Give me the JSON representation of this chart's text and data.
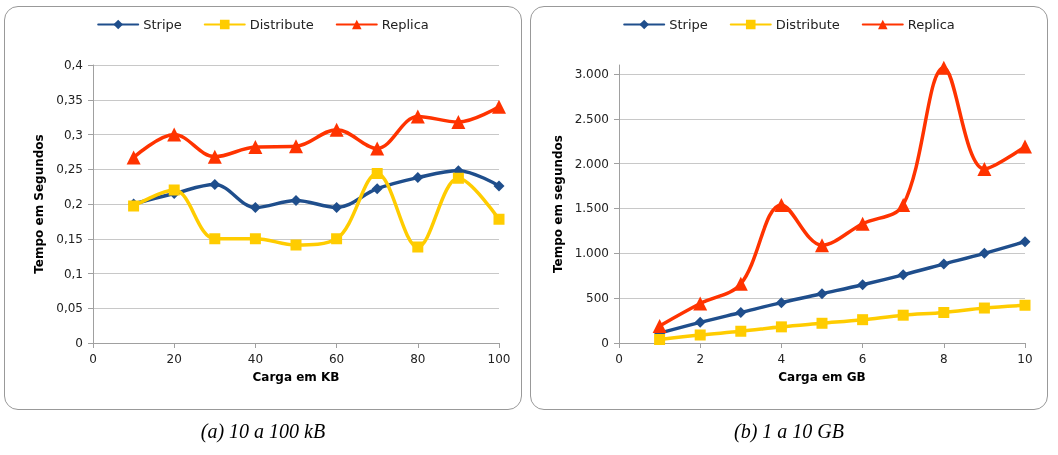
{
  "chart_data": [
    {
      "type": "line",
      "xlabel": "Carga em KB",
      "ylabel": "Tempo em Segundos",
      "annotations": [
        "(a) 10 a 100 kB"
      ],
      "x": [
        10,
        20,
        30,
        40,
        50,
        60,
        70,
        80,
        90,
        100
      ],
      "xlim": [
        0,
        100
      ],
      "xticks": [
        0,
        20,
        40,
        60,
        80,
        100
      ],
      "ylim": [
        0,
        0.4
      ],
      "yticks": [
        {
          "value": 0,
          "label": "0"
        },
        {
          "value": 0.05,
          "label": "0,05"
        },
        {
          "value": 0.1,
          "label": "0,1"
        },
        {
          "value": 0.15,
          "label": "0,15"
        },
        {
          "value": 0.2,
          "label": "0,2"
        },
        {
          "value": 0.25,
          "label": "0,25"
        },
        {
          "value": 0.3,
          "label": "0,3"
        },
        {
          "value": 0.35,
          "label": "0,35"
        },
        {
          "value": 0.4,
          "label": "0,4"
        }
      ],
      "grid": "y",
      "legend": "top",
      "line_style": "solid",
      "series": [
        {
          "name": "Stripe",
          "color": "#1f4e8c",
          "marker": "diamond",
          "values": [
            0.2,
            0.215,
            0.228,
            0.195,
            0.205,
            0.195,
            0.222,
            0.238,
            0.248,
            0.226
          ]
        },
        {
          "name": "Distribute",
          "color": "#ffcc00",
          "marker": "square",
          "values": [
            0.197,
            0.22,
            0.15,
            0.15,
            0.141,
            0.15,
            0.244,
            0.138,
            0.237,
            0.178
          ]
        },
        {
          "name": "Replica",
          "color": "#ff3300",
          "marker": "triangle",
          "values": [
            0.267,
            0.3,
            0.268,
            0.282,
            0.283,
            0.307,
            0.28,
            0.326,
            0.318,
            0.34
          ]
        }
      ]
    },
    {
      "type": "line",
      "xlabel": "Carga em GB",
      "ylabel": "Tempo em segundos",
      "annotations": [
        "(b) 1 a 10 GB"
      ],
      "x": [
        1,
        2,
        3,
        4,
        5,
        6,
        7,
        8,
        9,
        10
      ],
      "xlim": [
        0,
        10
      ],
      "xticks": [
        0,
        2,
        4,
        6,
        8,
        10
      ],
      "ylim": [
        0,
        3100
      ],
      "yticks": [
        0,
        {
          "value": 500,
          "label": "500"
        },
        {
          "value": 1000,
          "label": "1.000"
        },
        {
          "value": 1500,
          "label": "1.500"
        },
        {
          "value": 2000,
          "label": "2.000"
        },
        {
          "value": 2500,
          "label": "2.500"
        },
        {
          "value": 3000,
          "label": "3.000"
        }
      ],
      "grid": "y",
      "legend": "top",
      "line_style": "solid",
      "series": [
        {
          "name": "Stripe",
          "color": "#1f4e8c",
          "marker": "diamond",
          "values": [
            110,
            230,
            340,
            450,
            550,
            650,
            760,
            880,
            1000,
            1130
          ]
        },
        {
          "name": "Distribute",
          "color": "#ffcc00",
          "marker": "square",
          "values": [
            40,
            90,
            130,
            180,
            220,
            260,
            310,
            340,
            390,
            420
          ]
        },
        {
          "name": "Replica",
          "color": "#ff3300",
          "marker": "triangle",
          "values": [
            190,
            440,
            660,
            1540,
            1090,
            1330,
            1540,
            3070,
            1940,
            2190
          ]
        }
      ]
    }
  ]
}
